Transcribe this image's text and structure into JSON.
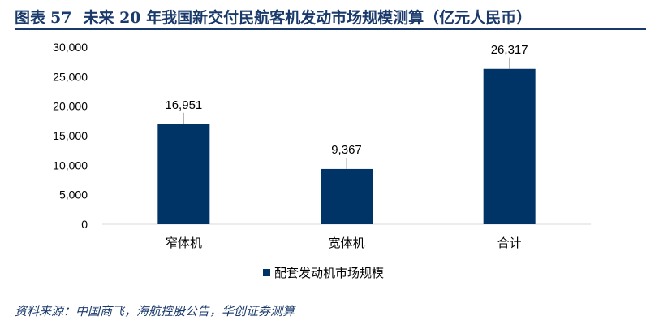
{
  "title": {
    "prefix": "图表",
    "number": "57",
    "text": "未来 20 年我国新交付民航客机发动市场规模测算（亿元人民币）"
  },
  "source": "资料来源：中国商飞，海航控股公告，华创证券测算",
  "chart_data": {
    "type": "bar",
    "categories": [
      "窄体机",
      "宽体机",
      "合计"
    ],
    "series": [
      {
        "name": "配套发动机市场规模",
        "values": [
          16951,
          9367,
          26317
        ],
        "color": "#003366"
      }
    ],
    "data_labels": [
      "16,951",
      "9,367",
      "26,317"
    ],
    "ylim": [
      0,
      30000
    ],
    "yticks": [
      0,
      5000,
      10000,
      15000,
      20000,
      25000,
      30000
    ],
    "ytick_labels": [
      "0",
      "5,000",
      "10,000",
      "15,000",
      "20,000",
      "25,000",
      "30,000"
    ],
    "grid": false,
    "legend_position": "bottom-center"
  }
}
